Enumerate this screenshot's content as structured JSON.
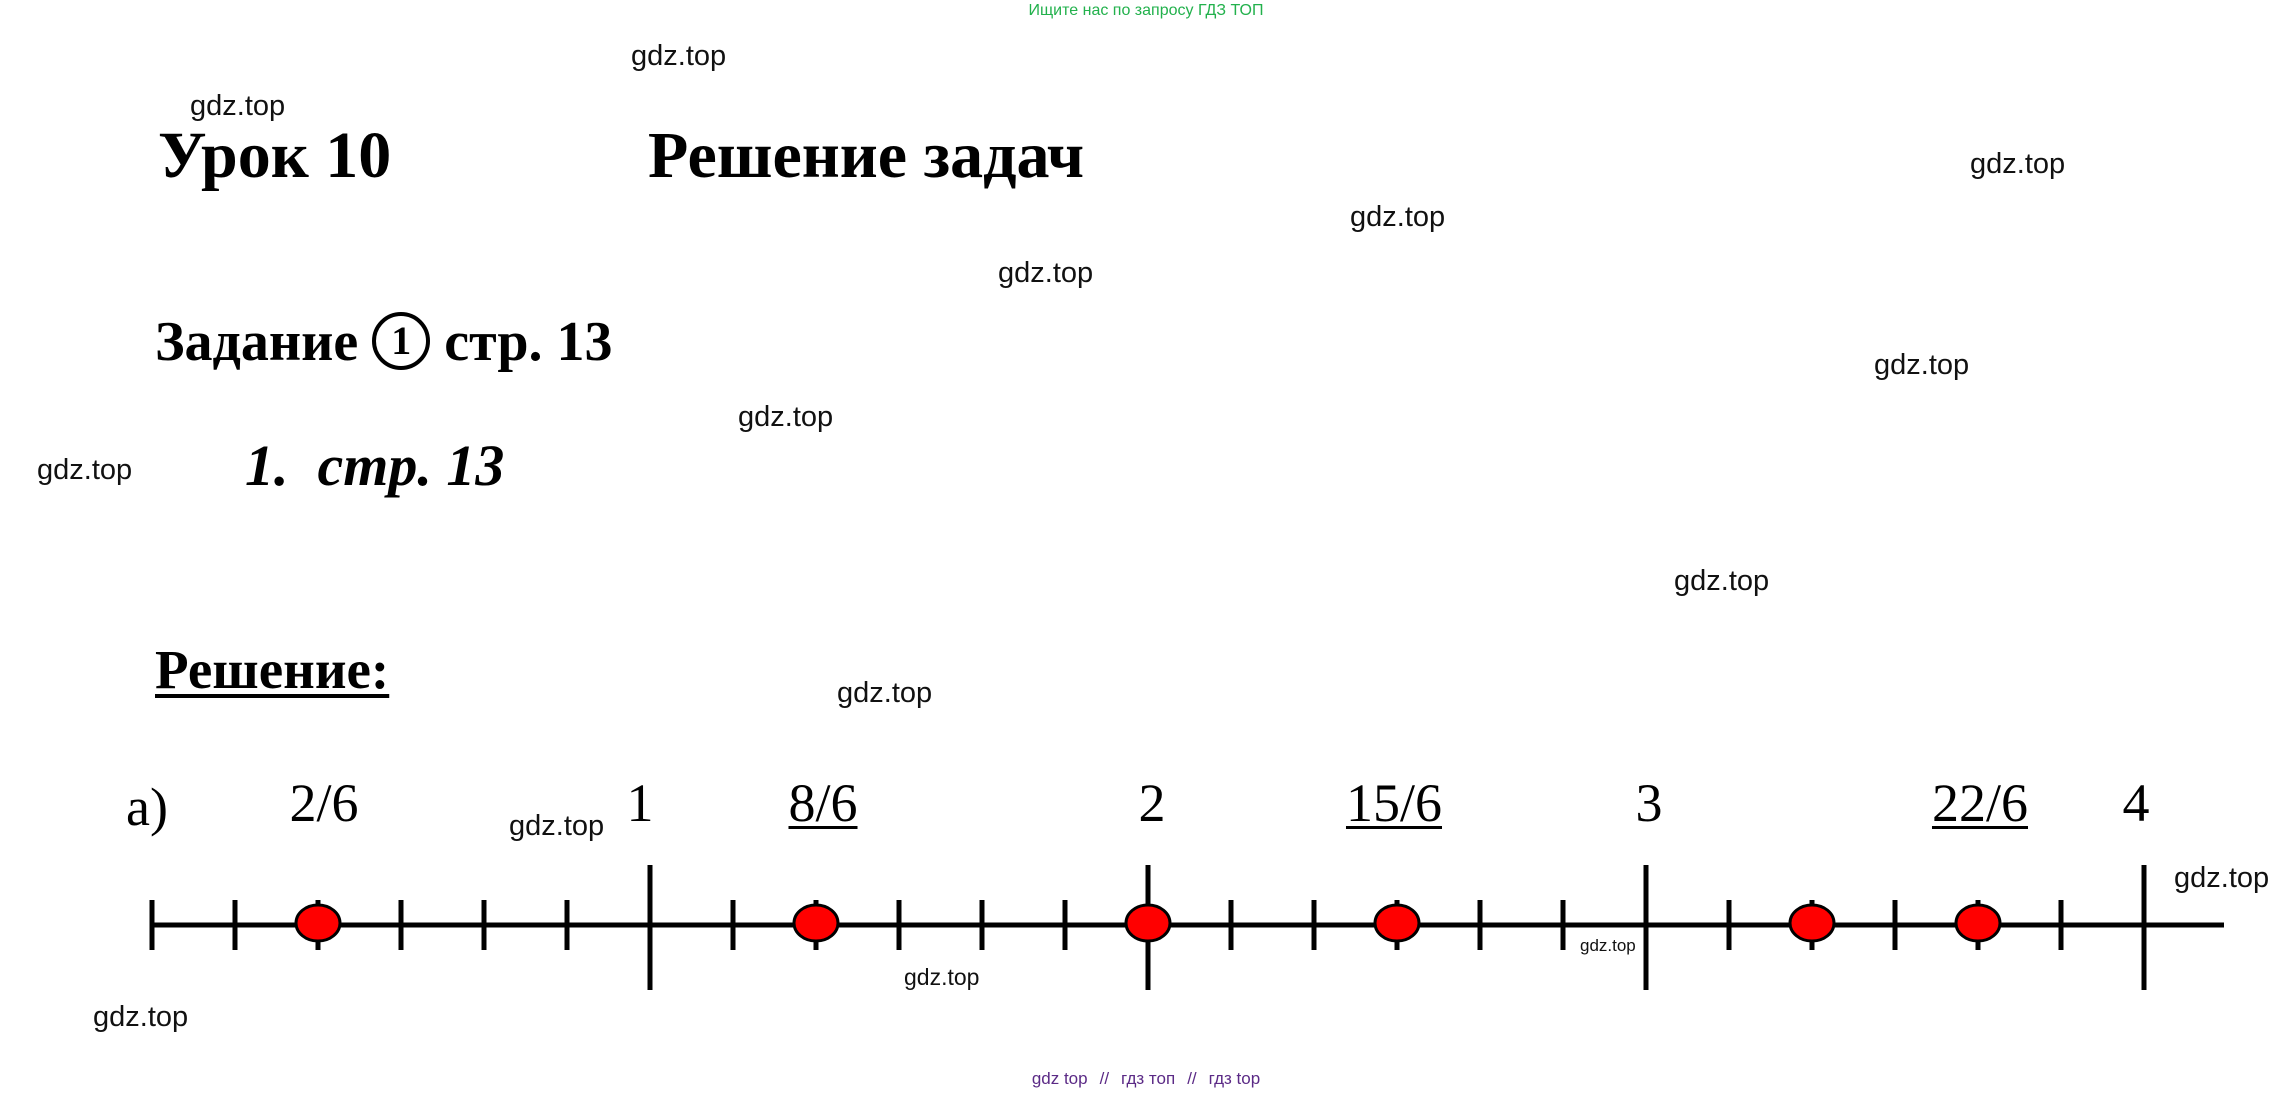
{
  "banner": "Ищите нас по запросу ГДЗ ТОП",
  "lesson": {
    "title": "Урок 10",
    "topic": "Решение задач"
  },
  "task": {
    "prefix": "Задание",
    "number": "1",
    "suffix": "стр. 13"
  },
  "task_ref": "1.  стр. 13",
  "solution_label": "Решение:",
  "part_label": "а)",
  "number_line": {
    "integer_labels": [
      "1",
      "2",
      "3",
      "4"
    ],
    "fraction_labels": [
      "2/6",
      "8/6",
      "15/6",
      "22/6"
    ],
    "unit_divisions": 6,
    "range": [
      0,
      4
    ],
    "points": [
      "2/6",
      "8/6",
      "12/6",
      "15/6",
      "20/6",
      "22/6"
    ],
    "point_color": "#ff0000"
  },
  "watermarks": [
    "gdz.top",
    "gdz.top",
    "gdz.top",
    "gdz.top",
    "gdz.top",
    "gdz.top",
    "gdz.top",
    "gdz.top",
    "gdz.top",
    "gdz.top",
    "gdz.top",
    "gdz.top",
    "gdz.top",
    "gdz.top"
  ],
  "footer": {
    "a": "gdz top",
    "sep1": "//",
    "b": "гдз топ",
    "sep2": "//",
    "c": "гдз top"
  }
}
